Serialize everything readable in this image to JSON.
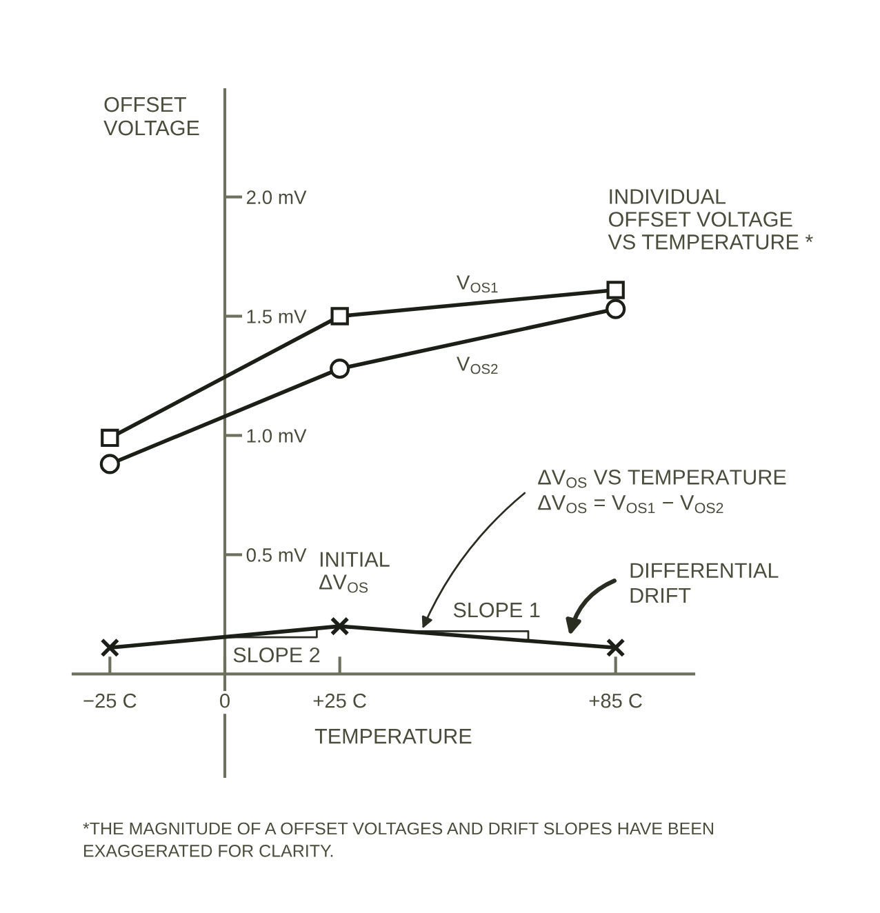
{
  "chart_data": {
    "type": "line",
    "xlabel": "TEMPERATURE",
    "ylabel": "OFFSET\nVOLTAGE",
    "xlim": [
      -33,
      102
    ],
    "ylim": [
      -0.43,
      2.45
    ],
    "xticks": [
      {
        "value": -25,
        "label": "−25 C"
      },
      0,
      {
        "value": 25,
        "label": "+25 C"
      },
      {
        "value": 85,
        "label": "+85 C"
      }
    ],
    "yticks": [
      {
        "value": 0.5,
        "label": "0.5 mV"
      },
      {
        "value": 1.0,
        "label": "1.0 mV"
      },
      {
        "value": 1.5,
        "label": "1.5 mV"
      },
      {
        "value": 2.0,
        "label": "2.0 mV"
      }
    ],
    "x": [
      -25,
      25,
      85
    ],
    "line_style": "solid",
    "series": [
      {
        "name": "V$_{OS1}$",
        "color": "#1c1f17",
        "marker": "square",
        "values": [
          0.99,
          1.5,
          1.61
        ]
      },
      {
        "name": "V$_{OS2}$",
        "color": "#1c1f17",
        "marker": "circle",
        "values": [
          0.88,
          1.28,
          1.53
        ]
      },
      {
        "color": "#1c1f17",
        "marker": "cross",
        "values": [
          0.11,
          0.2,
          0.11
        ]
      }
    ],
    "annotations": [
      {
        "text": "INDIVIDUAL\nOFFSET VOLTAGE\nVS TEMPERATURE *",
        "x": 85,
        "y": 1.61
      },
      {
        "text": "INITIAL\nΔV$_{OS}$",
        "x": 25,
        "y": 0.2
      },
      {
        "text": "ΔV$_{OS}$ VS TEMPERATURE",
        "x": 43,
        "y": 0.19
      },
      "ΔV$_{OS}$ = V$_{OS1}$ − V$_{OS2}$",
      {
        "text": "DIFFERENTIAL\nDRIFT",
        "x": 75,
        "y": 0.16
      },
      {
        "text": "SLOPE 2",
        "x": 20,
        "y": 0.19
      },
      {
        "text": "SLOPE 1",
        "x": 66,
        "y": 0.14
      },
      "*THE MAGNITUDE OF A OFFSET VOLTAGES AND DRIFT SLOPES HAVE BEEN\nEXAGGERATED FOR CLARITY."
    ]
  }
}
